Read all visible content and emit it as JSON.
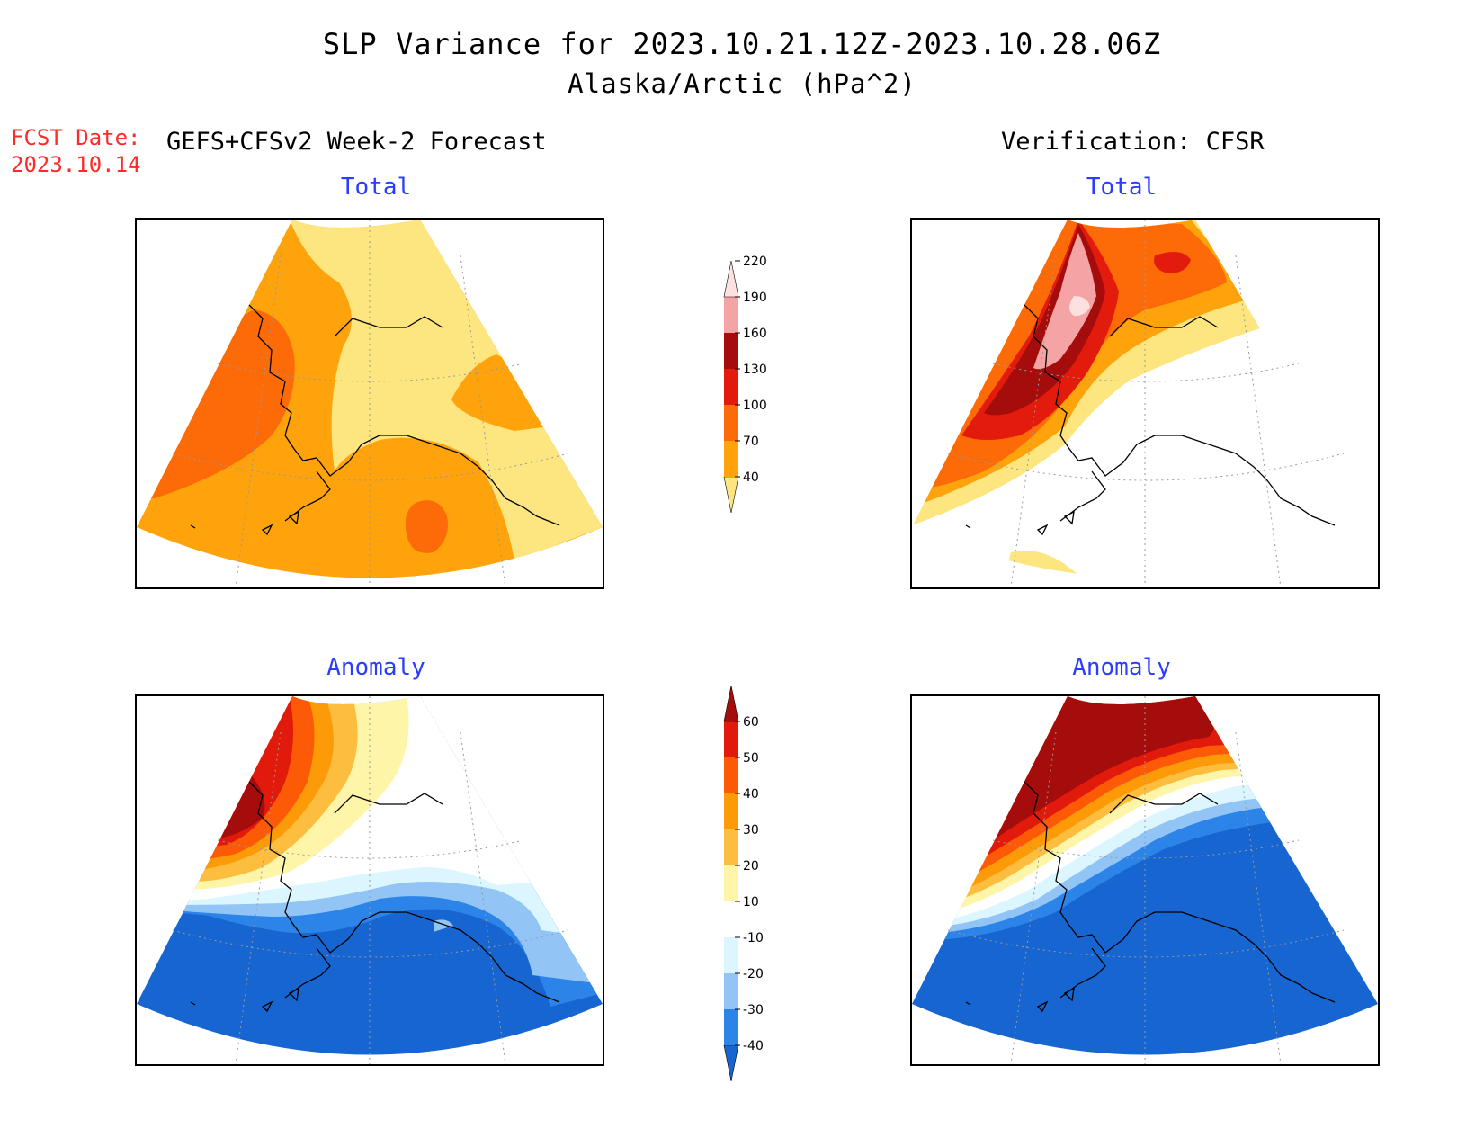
{
  "title": {
    "line1": "SLP Variance for 2023.10.21.12Z-2023.10.28.06Z",
    "line2": "Alaska/Arctic (hPa^2)"
  },
  "forecast_date": {
    "label": "FCST Date:",
    "value": "2023.10.14"
  },
  "columns": {
    "left": "GEFS+CFSv2 Week-2 Forecast",
    "right": "Verification: CFSR"
  },
  "panels": {
    "forecast_total": {
      "title": "Total"
    },
    "verification_total": {
      "title": "Total"
    },
    "forecast_anomaly": {
      "title": "Anomaly"
    },
    "verification_anomaly": {
      "title": "Anomaly"
    }
  },
  "colorbars": {
    "total": {
      "ticks": [
        "40",
        "70",
        "100",
        "130",
        "160",
        "190",
        "220"
      ],
      "colors": [
        "#fde680",
        "#fea30b",
        "#fd6a08",
        "#e31b0c",
        "#a50d0d",
        "#f4a4a4",
        "#fde0e0"
      ]
    },
    "anomaly": {
      "ticks": [
        "-40",
        "-30",
        "-20",
        "-10",
        "10",
        "20",
        "30",
        "40",
        "50",
        "60"
      ],
      "colors": [
        "#1665d0",
        "#2c84e8",
        "#92c5f5",
        "#dcf6ff",
        "#ffffff",
        "#fff5a8",
        "#fdbe40",
        "#fd9a08",
        "#fd5a08",
        "#e21a0c",
        "#a50d0d"
      ]
    }
  },
  "colors": {
    "title_blue": "#2a3cff",
    "fcst_red": "#ff2a2a"
  }
}
